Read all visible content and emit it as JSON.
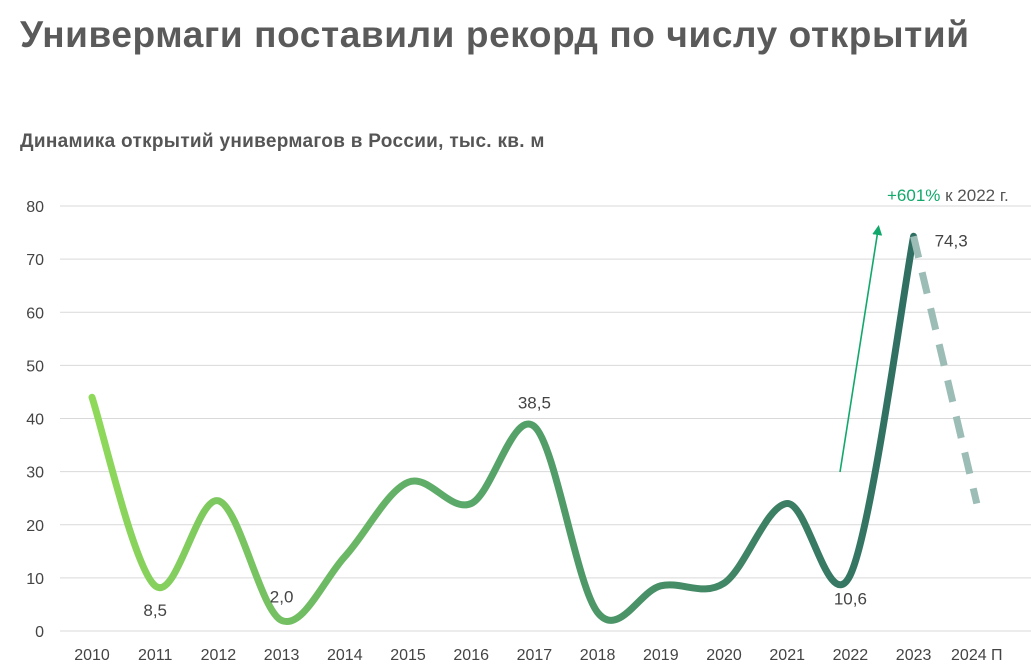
{
  "page": {
    "headline": "Универмаги поставили рекорд по числу открытий",
    "subtitle": "Динамика открытий универмагов в России, тыс. кв. м"
  },
  "colors": {
    "grid": "#d9d9d9",
    "gradient_start": "#8fd95a",
    "gradient_mid": "#5aa86a",
    "gradient_end": "#2f6e62",
    "forecast": "#9cbcb6",
    "accent": "#12a86b",
    "text": "#444444"
  },
  "chart_data": {
    "type": "line",
    "title": "Динамика открытий универмагов в России, тыс. кв. м",
    "xlabel": "",
    "ylabel": "",
    "categories": [
      "2010",
      "2011",
      "2012",
      "2013",
      "2014",
      "2015",
      "2016",
      "2017",
      "2018",
      "2019",
      "2020",
      "2021",
      "2022",
      "2023",
      "2024 П"
    ],
    "series": [
      {
        "values": [
          44,
          8.5,
          24.5,
          2.0,
          14,
          28,
          24,
          38.5,
          3.5,
          8.5,
          9,
          24,
          10.6,
          74.3,
          24
        ],
        "forecast_from_index": 13
      }
    ],
    "data_labels": [
      {
        "index": 1,
        "text": "8,5",
        "position": "below"
      },
      {
        "index": 3,
        "text": "2,0",
        "position": "above"
      },
      {
        "index": 7,
        "text": "38,5",
        "position": "above"
      },
      {
        "index": 12,
        "text": "10,6",
        "position": "below"
      },
      {
        "index": 13,
        "text": "74,3",
        "position": "right"
      }
    ],
    "annotation": {
      "pct": "+601%",
      "rest": " к 2022 г."
    },
    "y_ticks": [
      0,
      10,
      20,
      30,
      40,
      50,
      60,
      70,
      80
    ],
    "ylim": [
      0,
      80
    ],
    "grid": true,
    "legend": "none"
  }
}
